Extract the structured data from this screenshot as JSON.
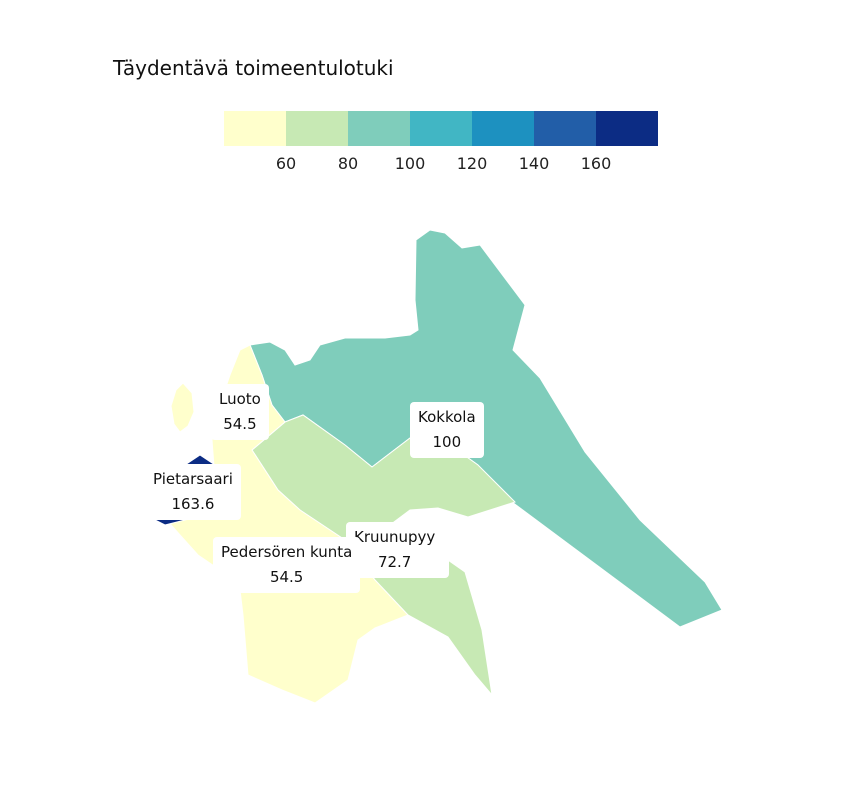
{
  "title": "Täydentävä toimeentulotuki",
  "legend": {
    "colors": [
      "#ffffcc",
      "#c7e9b4",
      "#7fcdbb",
      "#41b6c4",
      "#1d91c0",
      "#225ea8",
      "#0c2c84"
    ],
    "ticks": [
      "60",
      "80",
      "100",
      "120",
      "140",
      "160"
    ]
  },
  "regions": [
    {
      "name": "Kokkola",
      "value": "100",
      "color": "#7fcdbb"
    },
    {
      "name": "Luoto",
      "value": "54.5",
      "color": "#ffffcc"
    },
    {
      "name": "Pietarsaari",
      "value": "163.6",
      "color": "#0c2c84"
    },
    {
      "name": "Pedersören kunta",
      "value": "54.5",
      "color": "#ffffcc"
    },
    {
      "name": "Kruunupyy",
      "value": "72.7",
      "color": "#c7e9b4"
    }
  ]
}
